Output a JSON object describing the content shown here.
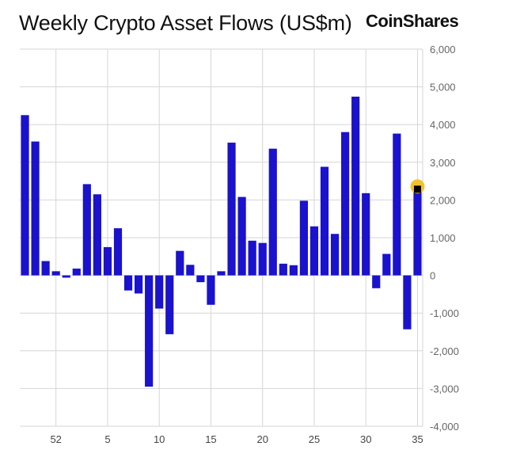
{
  "header": {
    "title": "Weekly Crypto Asset Flows (US$m)",
    "brand": "CoinShares"
  },
  "colors": {
    "bar": "#1a12cc",
    "last_bar_marker": "#000000",
    "highlight": "#f2c12e",
    "grid": "#d6d6d6",
    "axis_text": "#666666"
  },
  "chart_data": {
    "type": "bar",
    "title": "Weekly Crypto Asset Flows (US$m)",
    "xlabel": "",
    "ylabel": "",
    "ylim": [
      -4000,
      6000
    ],
    "y_ticks": [
      6000,
      5000,
      4000,
      3000,
      2000,
      1000,
      0,
      -1000,
      -2000,
      -3000,
      -4000
    ],
    "y_tick_labels": [
      "6,000",
      "5,000",
      "4,000",
      "3,000",
      "2,000",
      "1,000",
      "0",
      "-1,000",
      "-2,000",
      "-3,000",
      "-4,000"
    ],
    "x_tick_labels": [
      "52",
      "5",
      "10",
      "15",
      "20",
      "25",
      "30",
      "35"
    ],
    "x_tick_weeks": [
      52,
      5,
      10,
      15,
      20,
      25,
      30,
      35
    ],
    "weeks": [
      49,
      50,
      51,
      52,
      1,
      2,
      3,
      4,
      5,
      6,
      7,
      8,
      9,
      10,
      11,
      12,
      13,
      14,
      15,
      16,
      17,
      18,
      19,
      20,
      21,
      22,
      23,
      24,
      25,
      26,
      27,
      28,
      29,
      30,
      31,
      32,
      33,
      34,
      35
    ],
    "series": [
      {
        "values": [
          4250,
          3550,
          380,
          110,
          -60,
          180,
          2420,
          2150,
          750,
          1250,
          -400,
          -480,
          -2950,
          -880,
          -1560,
          650,
          280,
          -180,
          -780,
          110,
          3520,
          2080,
          920,
          860,
          3360,
          310,
          270,
          1980,
          1300,
          2880,
          1100,
          3800,
          4740,
          2180,
          -340,
          570,
          3760,
          -1430,
          2400
        ]
      }
    ],
    "grid": true,
    "legend": "none"
  }
}
